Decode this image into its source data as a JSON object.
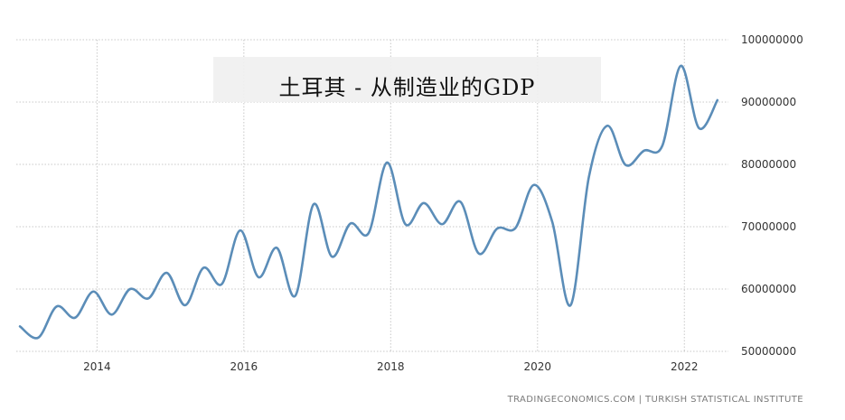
{
  "chart_data": {
    "type": "line",
    "title": "土耳其 - 从制造业的GDP",
    "xlabel": "",
    "ylabel": "",
    "source": "TRADINGECONOMICS.COM  |  TURKISH STATISTICAL INSTITUTE",
    "xlim": [
      2012.9,
      2022.6
    ],
    "ylim": [
      50000000,
      100000000
    ],
    "x_ticks": [
      2014,
      2016,
      2018,
      2020,
      2022
    ],
    "x_tick_labels": [
      "2014",
      "2016",
      "2018",
      "2020",
      "2022"
    ],
    "y_ticks": [
      50000000,
      60000000,
      70000000,
      80000000,
      90000000,
      100000000
    ],
    "y_tick_labels": [
      "50000000",
      "60000000",
      "70000000",
      "80000000",
      "90000000",
      "100000000"
    ],
    "grid": true,
    "series_color": "#5b8db8",
    "series": [
      {
        "x": [
          2012.95,
          2013.2,
          2013.45,
          2013.7,
          2013.95,
          2014.2,
          2014.45,
          2014.7,
          2014.95,
          2015.2,
          2015.45,
          2015.7,
          2015.95,
          2016.2,
          2016.45,
          2016.7,
          2016.95,
          2017.2,
          2017.45,
          2017.7,
          2017.95,
          2018.2,
          2018.45,
          2018.7,
          2018.95,
          2019.2,
          2019.45,
          2019.7,
          2019.95,
          2020.2,
          2020.45,
          2020.7,
          2020.95,
          2021.2,
          2021.45,
          2021.7,
          2021.95,
          2022.2,
          2022.45
        ],
        "values": [
          54000000,
          52200000,
          57200000,
          55400000,
          59600000,
          55900000,
          60000000,
          58500000,
          62600000,
          57400000,
          63400000,
          60800000,
          69400000,
          61900000,
          66600000,
          58900000,
          73600000,
          65200000,
          70500000,
          69000000,
          80300000,
          70400000,
          73800000,
          70400000,
          74000000,
          65700000,
          69700000,
          69800000,
          76700000,
          70800000,
          57400000,
          78000000,
          86200000,
          79900000,
          82200000,
          83000000,
          95800000,
          85800000,
          90300000
        ]
      }
    ]
  }
}
